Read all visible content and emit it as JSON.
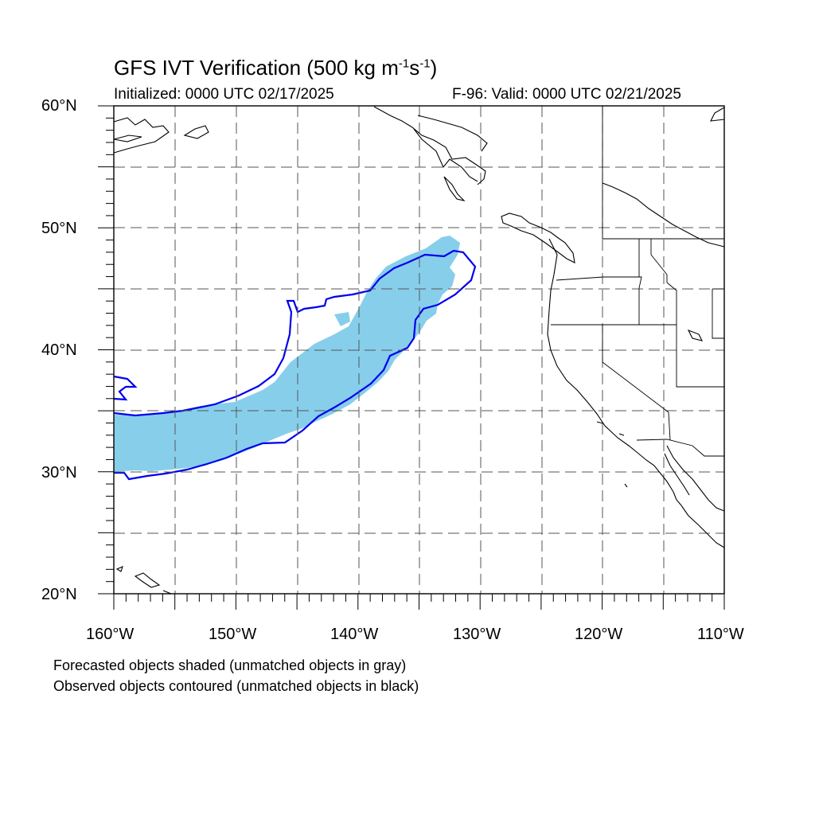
{
  "title": {
    "main": "GFS IVT Verification (500 kg m",
    "exp1": "-1",
    "mid": "s",
    "exp2": "-1",
    "end": ")"
  },
  "init_text": "Initialized: 0000 UTC 02/17/2025",
  "valid_text": "F-96: Valid: 0000 UTC 02/21/2025",
  "lat_labels": [
    "60°N",
    "50°N",
    "40°N",
    "30°N",
    "20°N"
  ],
  "lon_labels": [
    "160°W",
    "150°W",
    "140°W",
    "130°W",
    "120°W",
    "110°W"
  ],
  "footer": [
    "Forecasted objects shaded (unmatched objects in gray)",
    "Observed objects contoured (unmatched objects in black)"
  ],
  "colors": {
    "forecast_fill": "#87ceeb",
    "observed_contour": "#0000ee",
    "coastline": "#000000",
    "grid": "#000000"
  },
  "map_extent": {
    "lon_range": [
      -160,
      -110
    ],
    "lat_range": [
      20,
      60
    ]
  }
}
